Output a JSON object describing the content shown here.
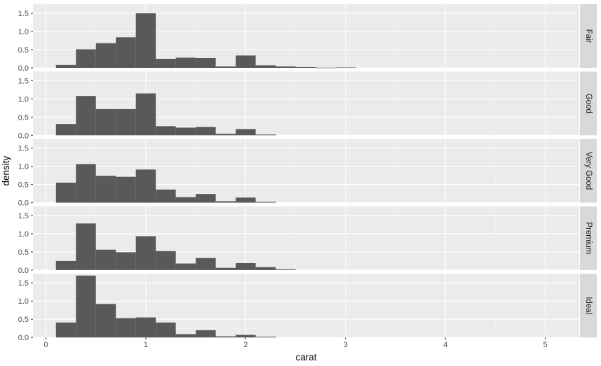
{
  "chart_data": {
    "type": "bar",
    "subtype": "faceted-histogram",
    "xlabel": "carat",
    "ylabel": "density",
    "xlim": [
      -0.13,
      5.34
    ],
    "ylim": [
      0,
      1.75
    ],
    "x_ticks": [
      0,
      1,
      2,
      3,
      4,
      5
    ],
    "x_tick_labels": [
      "0",
      "1",
      "2",
      "3",
      "4",
      "5"
    ],
    "y_ticks": [
      0.0,
      0.5,
      1.0,
      1.5
    ],
    "y_tick_labels": [
      "0.0",
      "0.5",
      "1.0",
      "1.5"
    ],
    "bin_width": 0.2,
    "bar_color": "#595959",
    "panel_background": "#ebebeb",
    "strip_background": "#d9d9d9",
    "grid": true,
    "facets": [
      {
        "label": "Fair",
        "bins": [
          {
            "x0": 0.1,
            "density": 0.08
          },
          {
            "x0": 0.3,
            "density": 0.51
          },
          {
            "x0": 0.5,
            "density": 0.68
          },
          {
            "x0": 0.7,
            "density": 0.84
          },
          {
            "x0": 0.9,
            "density": 1.5
          },
          {
            "x0": 1.1,
            "density": 0.25
          },
          {
            "x0": 1.3,
            "density": 0.28
          },
          {
            "x0": 1.5,
            "density": 0.27
          },
          {
            "x0": 1.7,
            "density": 0.04
          },
          {
            "x0": 1.9,
            "density": 0.34
          },
          {
            "x0": 2.1,
            "density": 0.07
          },
          {
            "x0": 2.3,
            "density": 0.04
          },
          {
            "x0": 2.5,
            "density": 0.02
          },
          {
            "x0": 2.7,
            "density": 0.005
          },
          {
            "x0": 2.9,
            "density": 0.01
          }
        ]
      },
      {
        "label": "Good",
        "bins": [
          {
            "x0": 0.1,
            "density": 0.31
          },
          {
            "x0": 0.3,
            "density": 1.08
          },
          {
            "x0": 0.5,
            "density": 0.72
          },
          {
            "x0": 0.7,
            "density": 0.72
          },
          {
            "x0": 0.9,
            "density": 1.15
          },
          {
            "x0": 1.1,
            "density": 0.25
          },
          {
            "x0": 1.3,
            "density": 0.21
          },
          {
            "x0": 1.5,
            "density": 0.23
          },
          {
            "x0": 1.7,
            "density": 0.04
          },
          {
            "x0": 1.9,
            "density": 0.17
          },
          {
            "x0": 2.1,
            "density": 0.02
          }
        ]
      },
      {
        "label": "Very Good",
        "bins": [
          {
            "x0": 0.1,
            "density": 0.55
          },
          {
            "x0": 0.3,
            "density": 1.06
          },
          {
            "x0": 0.5,
            "density": 0.74
          },
          {
            "x0": 0.7,
            "density": 0.71
          },
          {
            "x0": 0.9,
            "density": 0.91
          },
          {
            "x0": 1.1,
            "density": 0.36
          },
          {
            "x0": 1.3,
            "density": 0.15
          },
          {
            "x0": 1.5,
            "density": 0.24
          },
          {
            "x0": 1.7,
            "density": 0.04
          },
          {
            "x0": 1.9,
            "density": 0.14
          },
          {
            "x0": 2.1,
            "density": 0.02
          }
        ]
      },
      {
        "label": "Premium",
        "bins": [
          {
            "x0": 0.1,
            "density": 0.25
          },
          {
            "x0": 0.3,
            "density": 1.28
          },
          {
            "x0": 0.5,
            "density": 0.56
          },
          {
            "x0": 0.7,
            "density": 0.49
          },
          {
            "x0": 0.9,
            "density": 0.93
          },
          {
            "x0": 1.1,
            "density": 0.52
          },
          {
            "x0": 1.3,
            "density": 0.18
          },
          {
            "x0": 1.5,
            "density": 0.33
          },
          {
            "x0": 1.7,
            "density": 0.06
          },
          {
            "x0": 1.9,
            "density": 0.19
          },
          {
            "x0": 2.1,
            "density": 0.08
          },
          {
            "x0": 2.3,
            "density": 0.02
          }
        ]
      },
      {
        "label": "Ideal",
        "bins": [
          {
            "x0": 0.1,
            "density": 0.41
          },
          {
            "x0": 0.3,
            "density": 1.7
          },
          {
            "x0": 0.5,
            "density": 0.92
          },
          {
            "x0": 0.7,
            "density": 0.53
          },
          {
            "x0": 0.9,
            "density": 0.55
          },
          {
            "x0": 1.1,
            "density": 0.41
          },
          {
            "x0": 1.3,
            "density": 0.09
          },
          {
            "x0": 1.5,
            "density": 0.2
          },
          {
            "x0": 1.7,
            "density": 0.03
          },
          {
            "x0": 1.9,
            "density": 0.07
          },
          {
            "x0": 2.1,
            "density": 0.02
          }
        ]
      }
    ]
  }
}
